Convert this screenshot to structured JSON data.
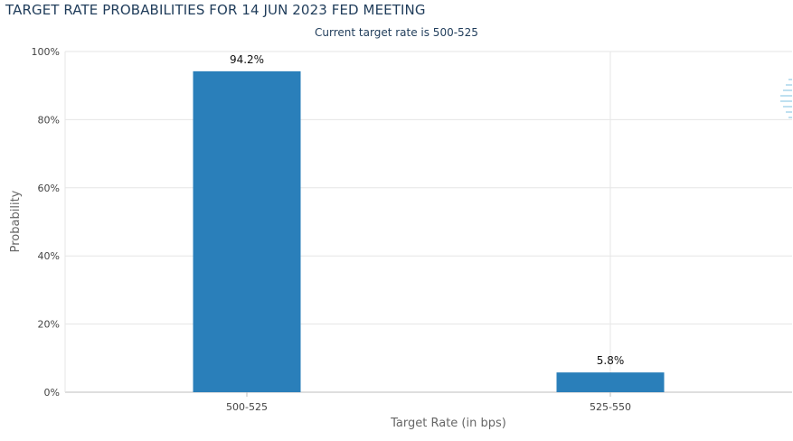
{
  "chart_data": {
    "type": "bar",
    "title": "TARGET RATE PROBABILITIES FOR 14 JUN 2023 FED MEETING",
    "subtitle": "Current target rate is 500-525",
    "categories": [
      "500-525",
      "525-550"
    ],
    "values": [
      94.2,
      5.8
    ],
    "data_labels": [
      "94.2%",
      "5.8%"
    ],
    "xlabel": "Target Rate (in bps)",
    "ylabel": "Probability",
    "ylim": [
      0,
      100
    ],
    "yticks": [
      0,
      20,
      40,
      60,
      80,
      100
    ],
    "ytick_labels": [
      "0%",
      "20%",
      "40%",
      "60%",
      "80%",
      "100%"
    ],
    "grid": true,
    "legend": "none",
    "bar_color": "#2a7fba"
  }
}
